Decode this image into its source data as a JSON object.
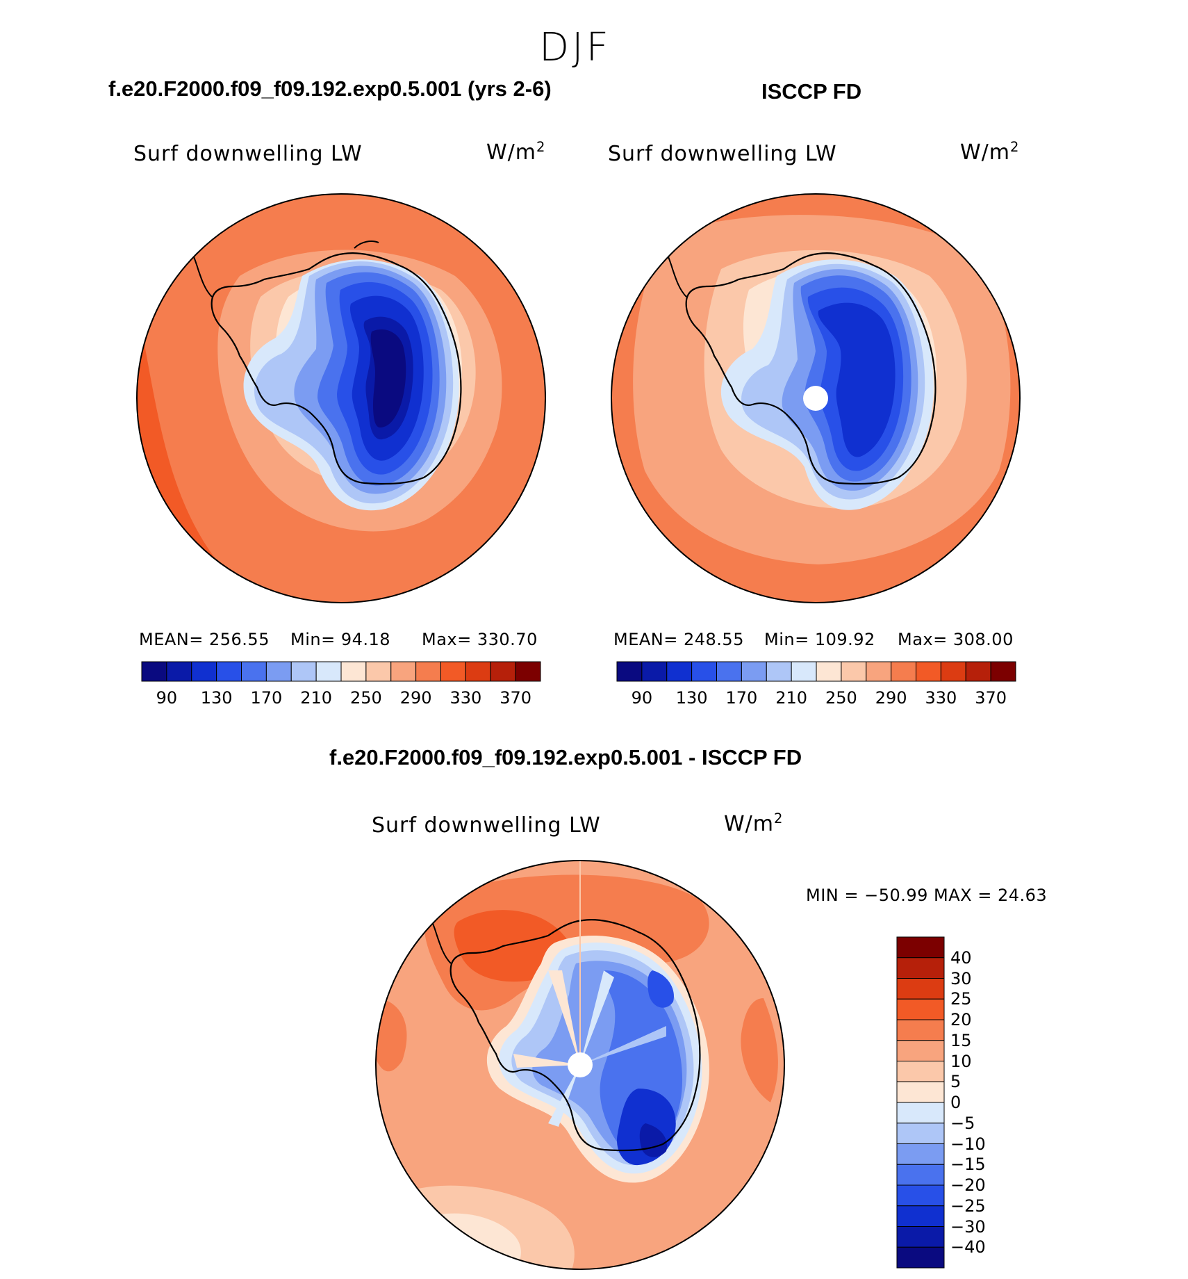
{
  "season": "DJF",
  "panels": {
    "left": {
      "title": "f.e20.F2000.f09_f09.192.exp0.5.001 (yrs 2-6)",
      "variable": "Surf downwelling LW",
      "units_base": "W/m",
      "units_exp": "2",
      "stats": {
        "mean": "MEAN= 256.55",
        "min": "Min= 94.18",
        "max": "Max= 330.70"
      }
    },
    "right": {
      "title": "ISCCP FD",
      "variable": "Surf downwelling LW",
      "units_base": "W/m",
      "units_exp": "2",
      "stats": {
        "mean": "MEAN= 248.55",
        "min": "Min= 109.92",
        "max": "Max= 308.00"
      }
    },
    "diff": {
      "title": "f.e20.F2000.f09_f09.192.exp0.5.001 - ISCCP FD",
      "variable": "Surf downwelling LW",
      "units_base": "W/m",
      "units_exp": "2",
      "minmax": "MIN = −50.99 MAX = 24.63"
    }
  },
  "colorbars": {
    "main": {
      "colors": [
        "#0a0a80",
        "#0a1aa8",
        "#1030d0",
        "#2850e8",
        "#4a72ee",
        "#7b9cf2",
        "#aec6f7",
        "#d8e8fb",
        "#fde6d4",
        "#fbc8aa",
        "#f8a47e",
        "#f57d4e",
        "#f25a26",
        "#dc3c12",
        "#b6200a",
        "#7c0000"
      ],
      "tick_labels": [
        "90",
        "130",
        "170",
        "210",
        "250",
        "290",
        "330",
        "370"
      ]
    },
    "diff": {
      "colors": [
        "#0a0a80",
        "#0a1aa8",
        "#1030d0",
        "#2850e8",
        "#4a72ee",
        "#7b9cf2",
        "#aec6f7",
        "#d8e8fb",
        "#fde6d4",
        "#fbc8aa",
        "#f8a47e",
        "#f57d4e",
        "#f25a26",
        "#dc3c12",
        "#b6200a",
        "#7c0000"
      ],
      "tick_labels": [
        "40",
        "30",
        "25",
        "20",
        "15",
        "10",
        "5",
        "0",
        "−5",
        "−10",
        "−15",
        "−20",
        "−25",
        "−30",
        "−40"
      ]
    }
  }
}
